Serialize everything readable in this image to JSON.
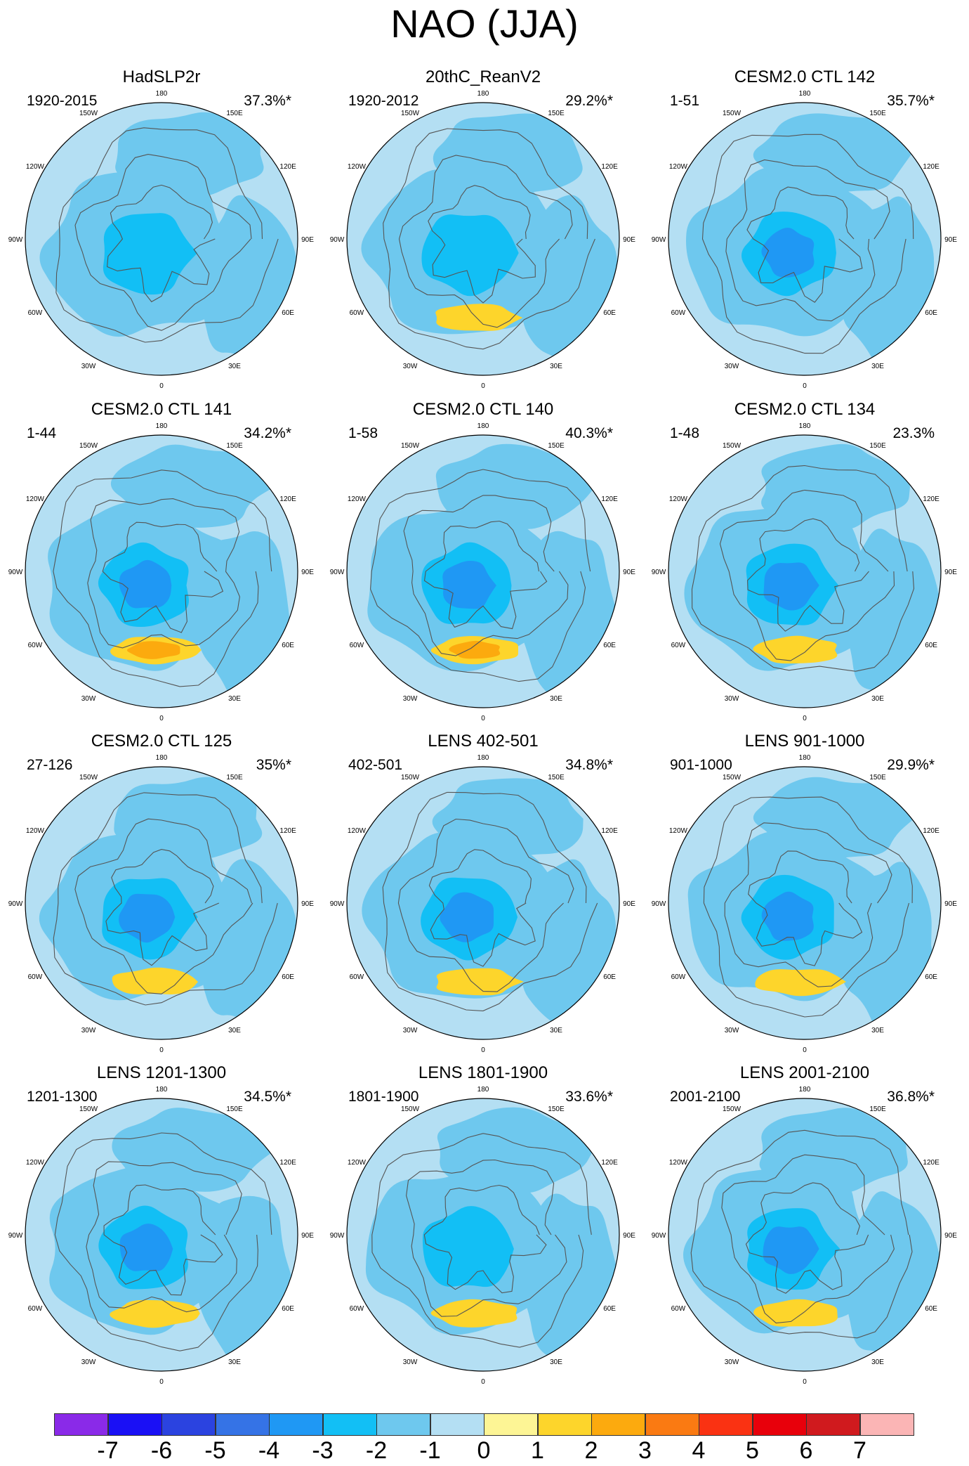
{
  "title": "NAO (JJA)",
  "chart_data": {
    "type": "heatmap",
    "description_free": true,
    "lon_labels": [
      "180",
      "150E",
      "120E",
      "90E",
      "60E",
      "30E",
      "0",
      "30W",
      "60W",
      "90W",
      "120W",
      "150W"
    ],
    "colorbar": {
      "ticks": [
        "-7",
        "-6",
        "-5",
        "-4",
        "-3",
        "-2",
        "-1",
        "0",
        "1",
        "2",
        "3",
        "4",
        "5",
        "6",
        "7"
      ],
      "colors": [
        "#8a2ae8",
        "#1a10f5",
        "#2b43e0",
        "#3573e6",
        "#1f98f4",
        "#12bff5",
        "#6ec8ee",
        "#b4dff3",
        "#fdf595",
        "#fdd52b",
        "#fcaa0e",
        "#fa7a12",
        "#fa3212",
        "#e8000b",
        "#d01a1e",
        "#fbb5b5"
      ]
    },
    "panels": [
      {
        "name": "HadSLP2r",
        "period": "1920-2015",
        "pct": "37.3%*",
        "neg": [
          -1,
          -2
        ],
        "pos": []
      },
      {
        "name": "20thC_ReanV2",
        "period": "1920-2012",
        "pct": "29.2%*",
        "neg": [
          -1,
          -2
        ],
        "pos": [
          2
        ]
      },
      {
        "name": "CESM2.0 CTL 142",
        "period": "1-51",
        "pct": "35.7%*",
        "neg": [
          -1,
          -2,
          -3
        ],
        "pos": []
      },
      {
        "name": "CESM2.0 CTL 141",
        "period": "1-44",
        "pct": "34.2%*",
        "neg": [
          -1,
          -2,
          -3
        ],
        "pos": [
          2,
          3
        ]
      },
      {
        "name": "CESM2.0 CTL 140",
        "period": "1-58",
        "pct": "40.3%*",
        "neg": [
          -1,
          -2,
          -3
        ],
        "pos": [
          2,
          3
        ]
      },
      {
        "name": "CESM2.0 CTL 134",
        "period": "1-48",
        "pct": "23.3%",
        "neg": [
          -1,
          -2,
          -3
        ],
        "pos": [
          2
        ]
      },
      {
        "name": "CESM2.0 CTL 125",
        "period": "27-126",
        "pct": "35%*",
        "neg": [
          -1,
          -2,
          -3
        ],
        "pos": [
          2
        ]
      },
      {
        "name": "LENS 402-501",
        "period": "402-501",
        "pct": "34.8%*",
        "neg": [
          -1,
          -2,
          -3
        ],
        "pos": [
          2
        ]
      },
      {
        "name": "LENS 901-1000",
        "period": "901-1000",
        "pct": "29.9%*",
        "neg": [
          -1,
          -2,
          -3
        ],
        "pos": [
          2
        ]
      },
      {
        "name": "LENS 1201-1300",
        "period": "1201-1300",
        "pct": "34.5%*",
        "neg": [
          -1,
          -2,
          -3
        ],
        "pos": [
          2
        ]
      },
      {
        "name": "LENS 1801-1900",
        "period": "1801-1900",
        "pct": "33.6%*",
        "neg": [
          -1,
          -2
        ],
        "pos": [
          2
        ]
      },
      {
        "name": "LENS 2001-2100",
        "period": "2001-2100",
        "pct": "36.8%*",
        "neg": [
          -1,
          -2,
          -3
        ],
        "pos": [
          2
        ]
      }
    ]
  }
}
